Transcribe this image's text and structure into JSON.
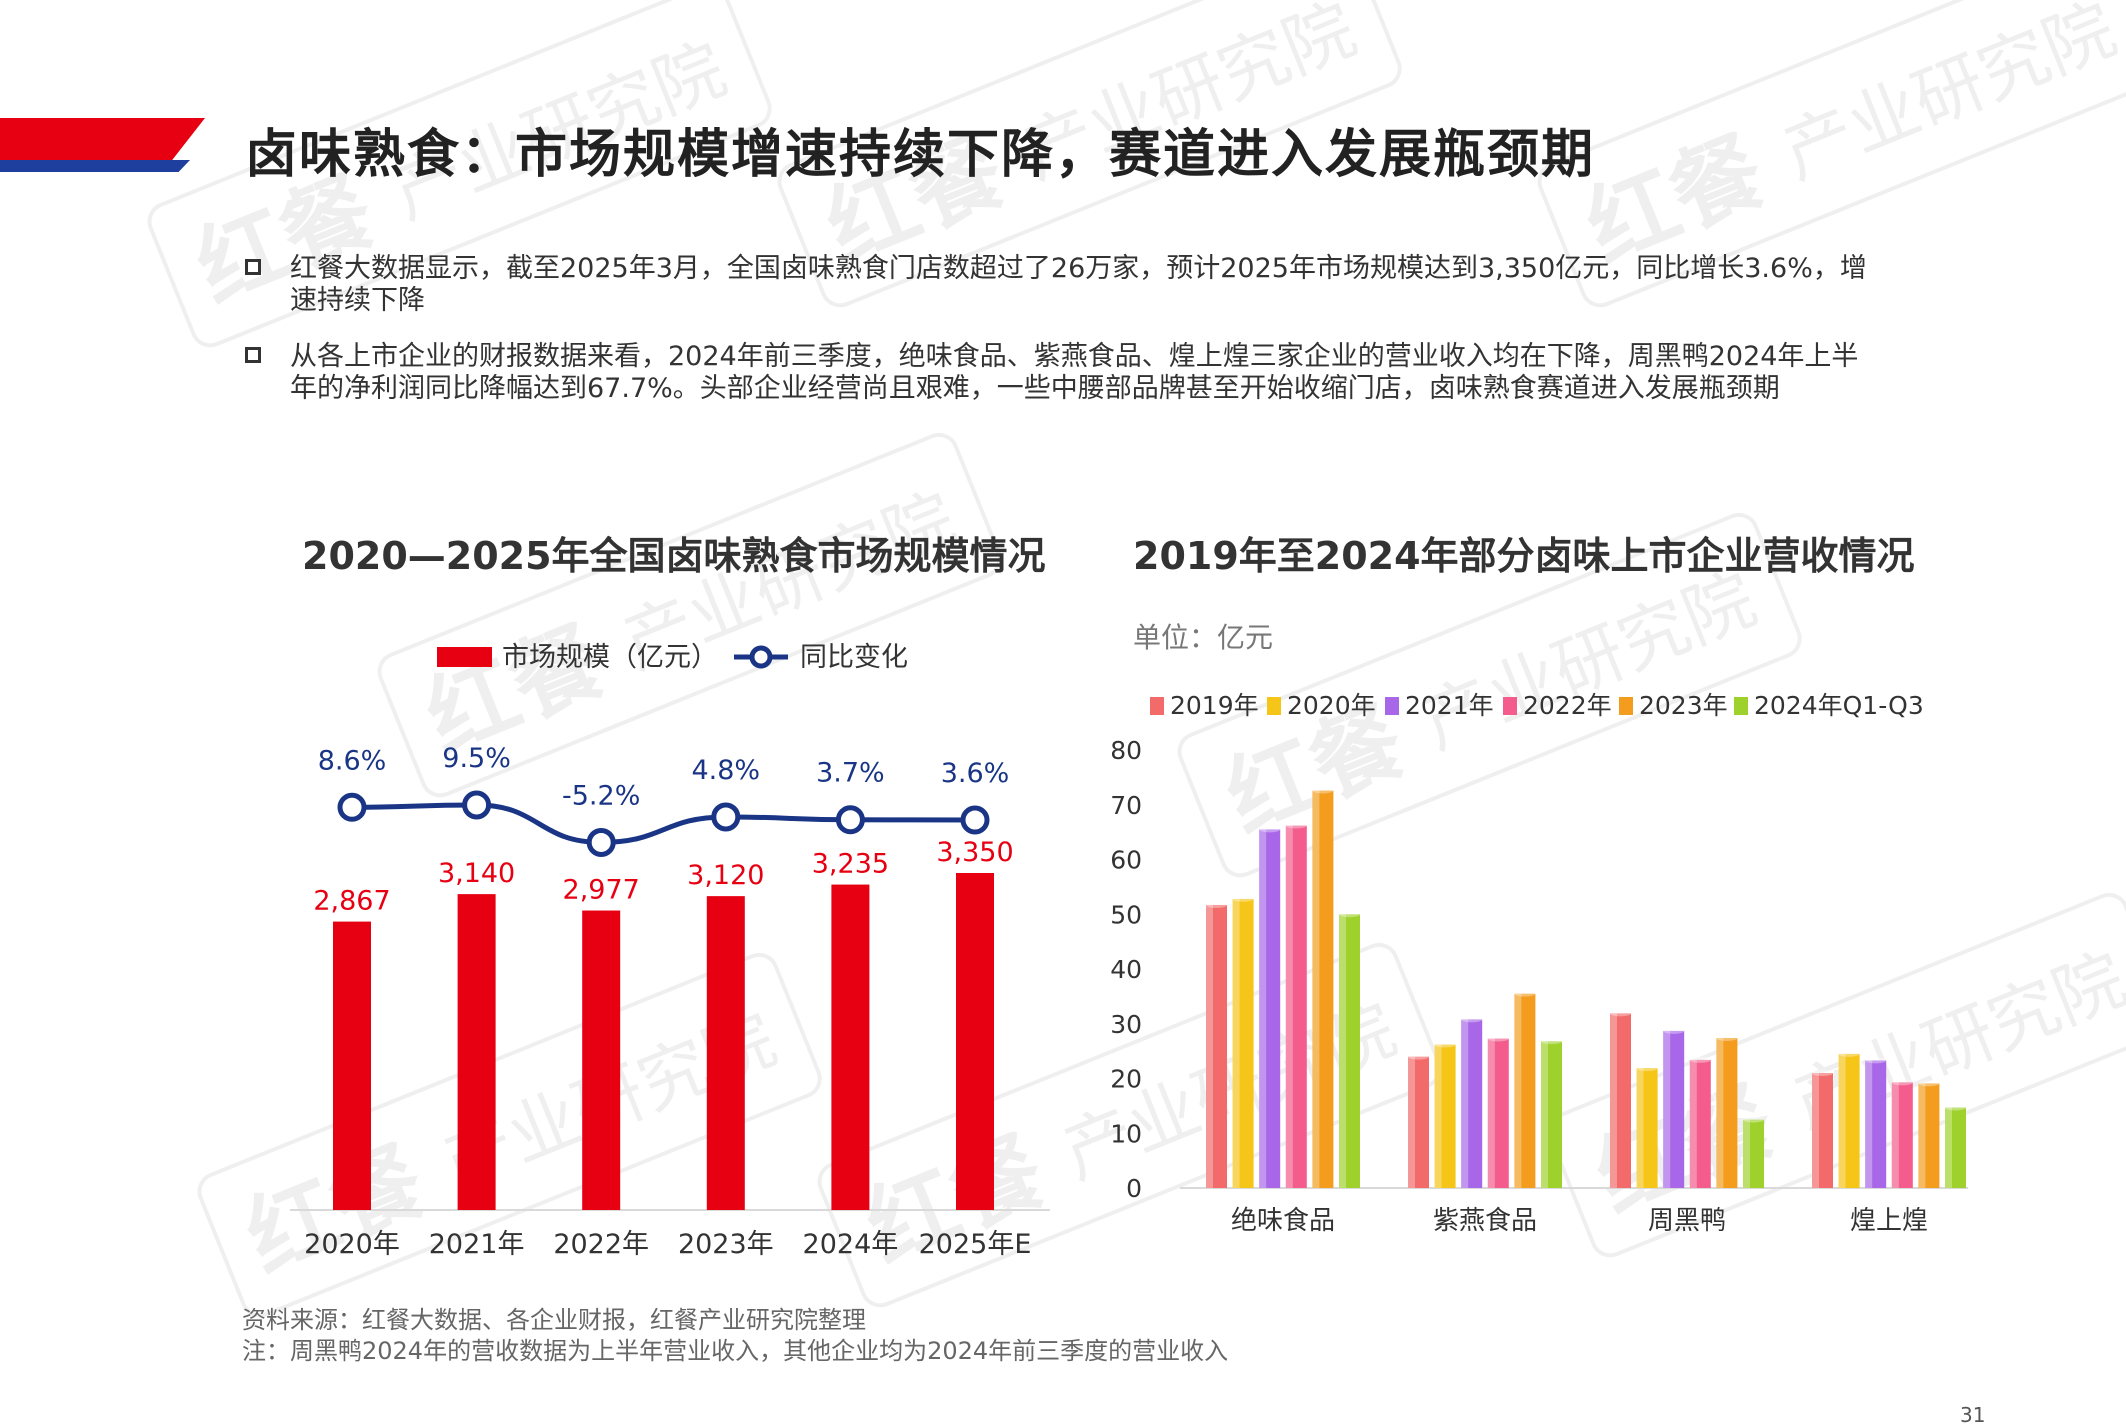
{
  "header": {
    "title": "卤味熟食：市场规模增速持续下降，赛道进入发展瓶颈期"
  },
  "bullets": [
    {
      "line1": "红餐大数据显示，截至2025年3月，全国卤味熟食门店数超过了26万家，预计2025年市场规模达到3,350亿元，同比增长3.6%，增",
      "line2": "速持续下降"
    },
    {
      "line1": "从各上市企业的财报数据来看，2024年前三季度，绝味食品、紫燕食品、煌上煌三家企业的营业收入均在下降，周黑鸭2024年上半",
      "line2": "年的净利润同比降幅达到67.7%。头部企业经营尚且艰难，一些中腰部品牌甚至开始收缩门店，卤味熟食赛道进入发展瓶颈期"
    }
  ],
  "watermark": {
    "brand": "红餐",
    "org": "产业研究院"
  },
  "colors": {
    "accent_red": "#e60012",
    "accent_blue": "#1f3f9e",
    "line_navy": "#1a3586"
  },
  "chart_data": [
    {
      "type": "bar",
      "title": "2020—2025年全国卤味熟食市场规模情况",
      "categories": [
        "2020年",
        "2021年",
        "2022年",
        "2023年",
        "2024年",
        "2025年E"
      ],
      "series": [
        {
          "name": "市场规模（亿元）",
          "type": "bar",
          "values": [
            2867,
            3140,
            2977,
            3120,
            3235,
            3350
          ],
          "labels": [
            "2,867",
            "3,140",
            "2,977",
            "3,120",
            "3,235",
            "3,350"
          ],
          "color": "#e60012"
        },
        {
          "name": "同比变化",
          "type": "line",
          "values": [
            8.6,
            9.5,
            -5.2,
            4.8,
            3.7,
            3.6
          ],
          "labels": [
            "8.6%",
            "9.5%",
            "-5.2%",
            "4.8%",
            "3.7%",
            "3.6%"
          ],
          "color": "#1a3586"
        }
      ],
      "legend_position": "top-center",
      "grid": false
    },
    {
      "type": "bar",
      "title": "2019年至2024年部分卤味上市企业营收情况",
      "unit_label": "单位：亿元",
      "categories": [
        "绝味食品",
        "紫燕食品",
        "周黑鸭",
        "煌上煌"
      ],
      "series": [
        {
          "name": "2019年",
          "values": [
            51.7,
            24.0,
            31.9,
            21.0
          ],
          "color": "#f36a6a"
        },
        {
          "name": "2020年",
          "values": [
            52.8,
            26.2,
            21.9,
            24.5
          ],
          "color": "#f5c518"
        },
        {
          "name": "2021年",
          "values": [
            65.5,
            30.8,
            28.7,
            23.3
          ],
          "color": "#a867e8"
        },
        {
          "name": "2022年",
          "values": [
            66.2,
            27.3,
            23.4,
            19.3
          ],
          "color": "#f35c8d"
        },
        {
          "name": "2023年",
          "values": [
            72.6,
            35.5,
            27.4,
            19.1
          ],
          "color": "#f39c1e"
        },
        {
          "name": "2024年Q1-Q3",
          "values": [
            50.0,
            26.8,
            12.5,
            14.7
          ],
          "color": "#9fd12d"
        }
      ],
      "yticks": [
        "0",
        "10",
        "20",
        "30",
        "40",
        "50",
        "60",
        "70",
        "80"
      ],
      "ylim": [
        0,
        80
      ],
      "legend_position": "top",
      "grid": false
    }
  ],
  "footnotes": {
    "source": "资料来源：红餐大数据、各企业财报，红餐产业研究院整理",
    "note": "注：周黑鸭2024年的营收数据为上半年营业收入，其他企业均为2024年前三季度的营业收入"
  },
  "page_number": "31"
}
